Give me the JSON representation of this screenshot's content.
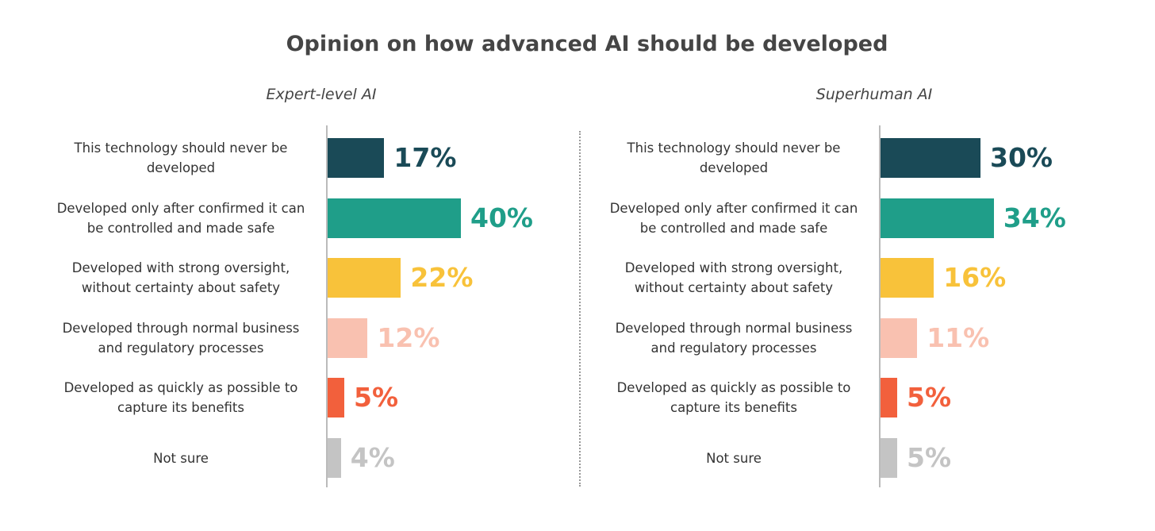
{
  "title": "Opinion on how advanced AI should be developed",
  "chart_data": [
    {
      "type": "bar",
      "subtitle": "Expert-level AI",
      "categories": [
        "This technology should never be developed",
        "Developed only after confirmed it can be controlled and made safe",
        "Developed with strong oversight, without certainty about safety",
        "Developed through normal business and regulatory processes",
        "Developed as quickly as possible to capture its benefits",
        "Not sure"
      ],
      "values": [
        17,
        40,
        22,
        12,
        5,
        4
      ],
      "value_labels": [
        "17%",
        "40%",
        "22%",
        "12%",
        "5%",
        "4%"
      ],
      "colors": [
        "#1a4a57",
        "#1f9e89",
        "#f8c23a",
        "#f9c1b0",
        "#f2603c",
        "#c4c4c4"
      ]
    },
    {
      "type": "bar",
      "subtitle": "Superhuman AI",
      "categories": [
        "This technology should never be developed",
        "Developed only after confirmed it can be controlled and made safe",
        "Developed with strong oversight, without certainty about safety",
        "Developed through normal business and regulatory processes",
        "Developed as quickly as possible to capture its benefits",
        "Not sure"
      ],
      "values": [
        30,
        34,
        16,
        11,
        5,
        5
      ],
      "value_labels": [
        "30%",
        "34%",
        "16%",
        "11%",
        "5%",
        "5%"
      ],
      "colors": [
        "#1a4a57",
        "#1f9e89",
        "#f8c23a",
        "#f9c1b0",
        "#f2603c",
        "#c4c4c4"
      ]
    }
  ]
}
